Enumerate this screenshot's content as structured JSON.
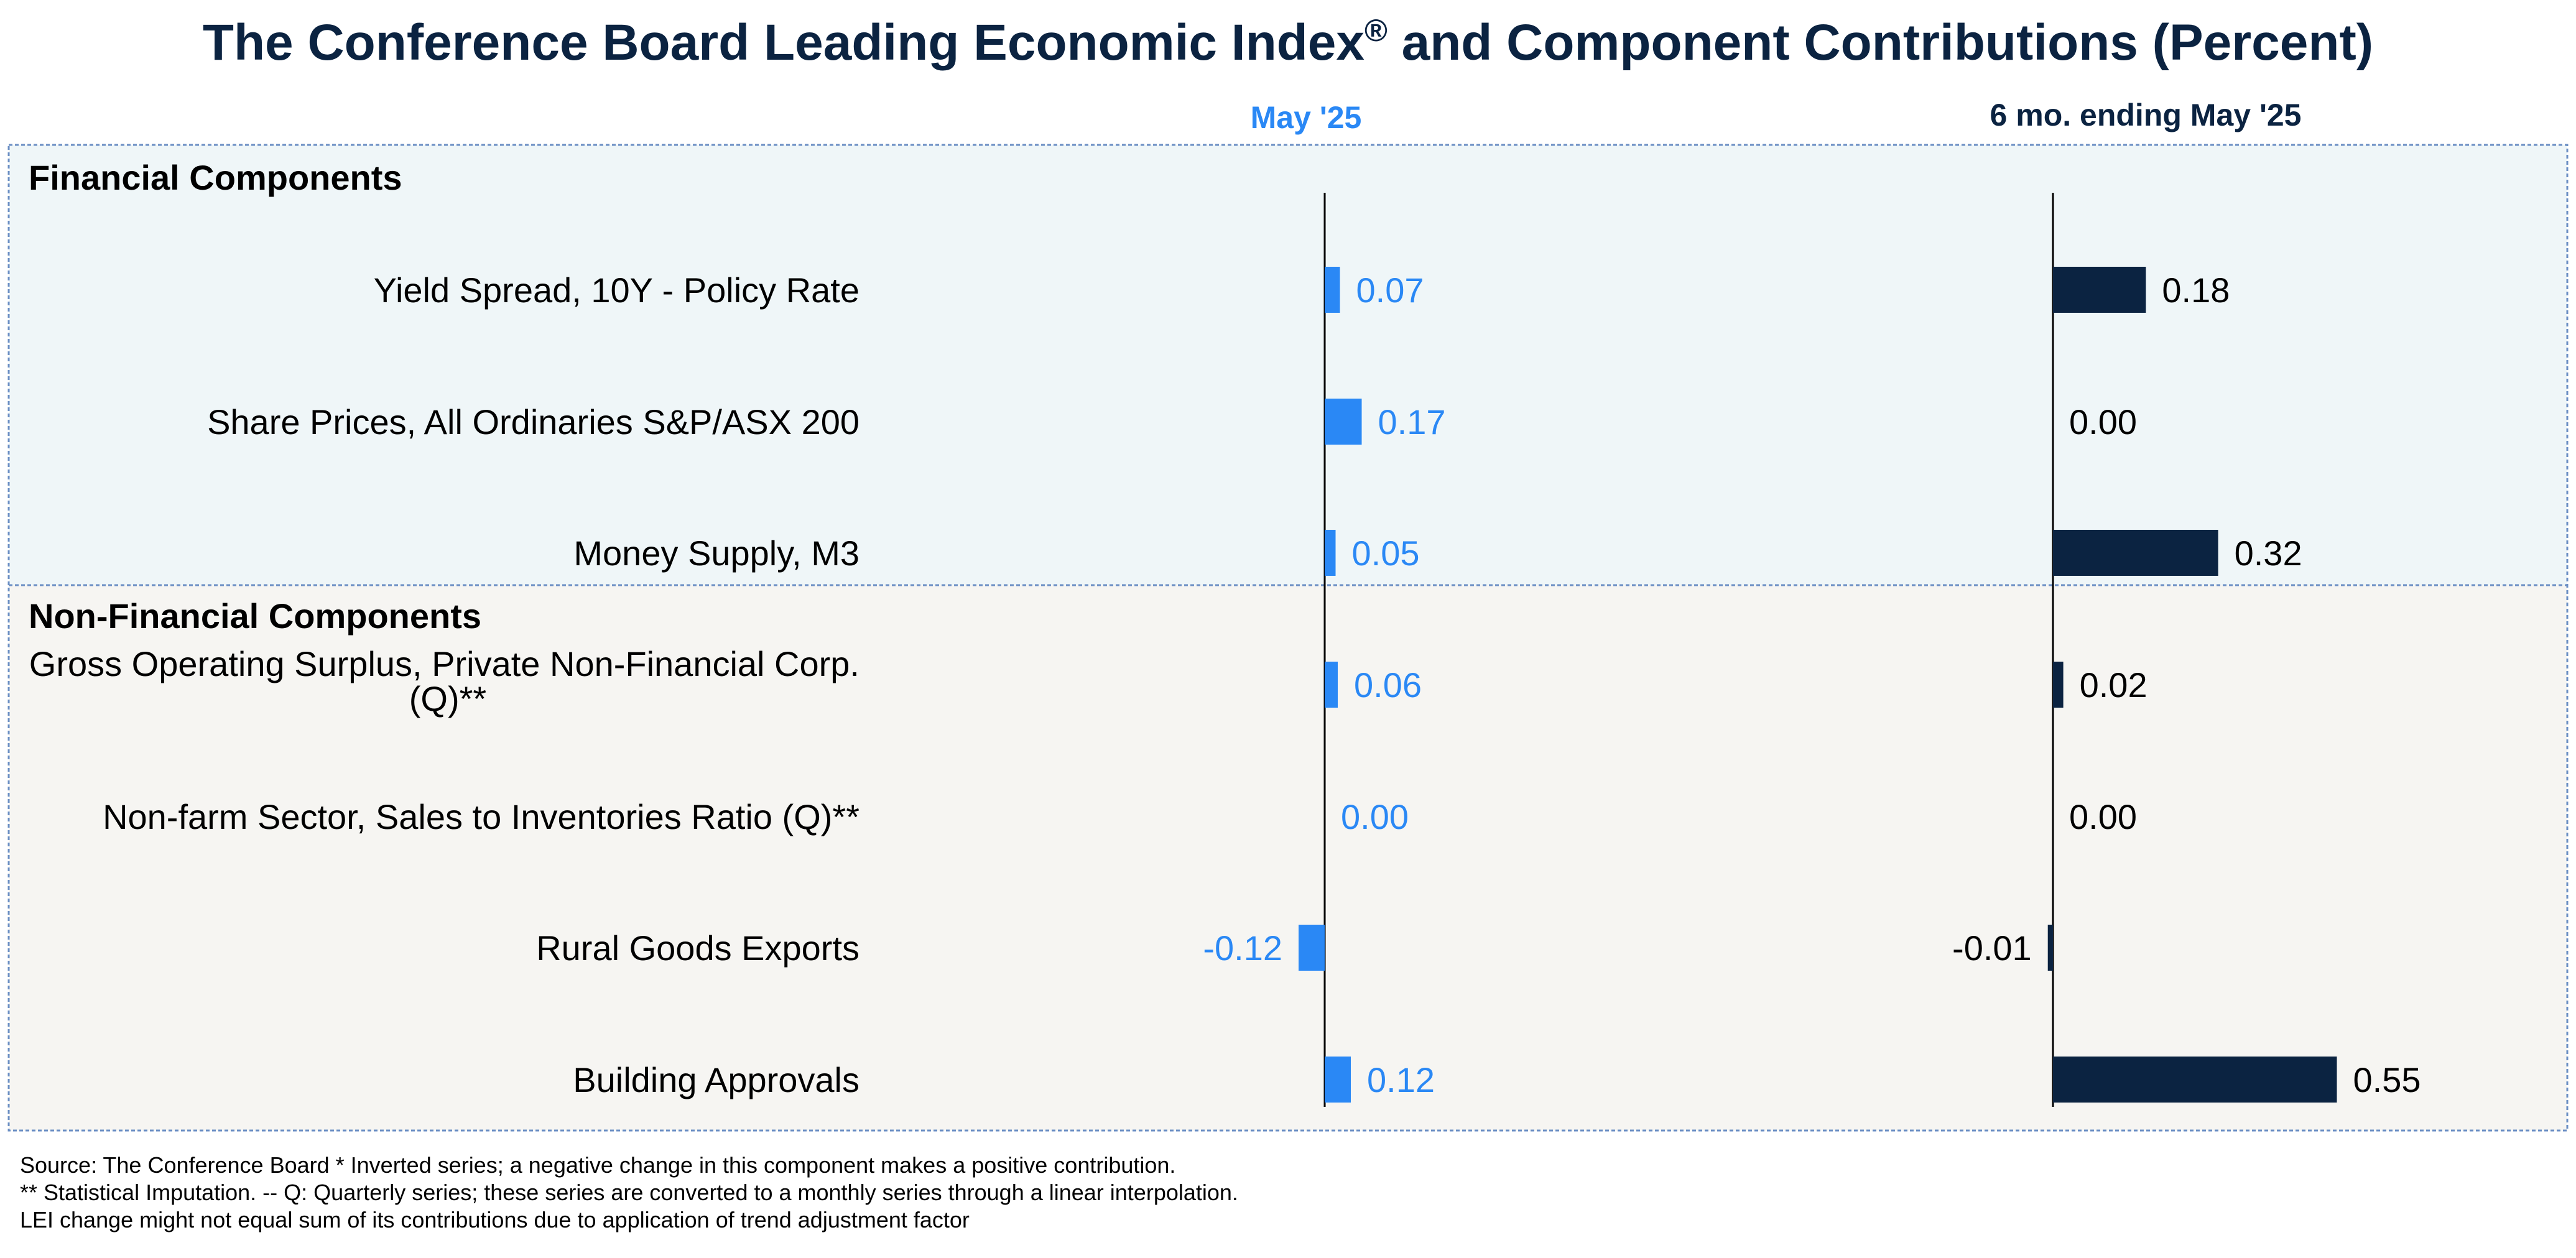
{
  "title": "The Conference Board Leading Economic Index",
  "title_mark": "®",
  "title_rest": " and Component Contributions (Percent)",
  "colors": {
    "title": "#0b2341",
    "month_bar": "#2a88f5",
    "six_month_bar": "#0b2341",
    "financial_bg": "#eff6f8",
    "nonfinancial_bg": "#f6f5f2",
    "border": "#6b8fc4"
  },
  "chart_data": {
    "type": "bar",
    "orientation": "horizontal",
    "title": "The Conference Board Leading Economic Index® and Component Contributions (Percent)",
    "sections": [
      {
        "name": "Financial Components",
        "categories": [
          "Yield Spread, 10Y - Policy Rate",
          "Share Prices, All Ordinaries S&P/ASX 200",
          "Money Supply, M3"
        ]
      },
      {
        "name": "Non-Financial Components",
        "categories": [
          "Gross Operating Surplus, Private Non-Financial Corp. (Q)**",
          "Non-farm Sector, Sales to Inventories Ratio (Q)**",
          "Rural Goods Exports",
          "Building Approvals"
        ]
      }
    ],
    "category_lines": [
      [
        "Yield Spread, 10Y - Policy Rate"
      ],
      [
        "Share Prices, All Ordinaries S&P/ASX 200"
      ],
      [
        "Money Supply, M3"
      ],
      [
        "Gross Operating Surplus, Private Non-Financial Corp.",
        "(Q)**"
      ],
      [
        "Non-farm Sector, Sales to Inventories Ratio (Q)**"
      ],
      [
        "Rural Goods Exports"
      ],
      [
        "Building Approvals"
      ]
    ],
    "series": [
      {
        "name": "May '25",
        "values": [
          0.07,
          0.17,
          0.05,
          0.06,
          0.0,
          -0.12,
          0.12
        ],
        "labels": [
          "0.07",
          "0.17",
          "0.05",
          "0.06",
          "0.00",
          "-0.12",
          "0.12"
        ]
      },
      {
        "name": "6 mo. ending May '25",
        "values": [
          0.18,
          0.0,
          0.32,
          0.02,
          0.0,
          -0.01,
          0.55
        ],
        "labels": [
          "0.18",
          "0.00",
          "0.32",
          "0.02",
          "0.00",
          "-0.01",
          "0.55"
        ]
      }
    ]
  },
  "footnotes": [
    "Source: The Conference Board *  Inverted series; a negative change in this component makes a positive contribution.",
    "**  Statistical Imputation. -- Q: Quarterly series; these series are converted to a monthly series through a linear interpolation.",
    "LEI change might not equal sum of its contributions due to application of trend adjustment factor"
  ]
}
